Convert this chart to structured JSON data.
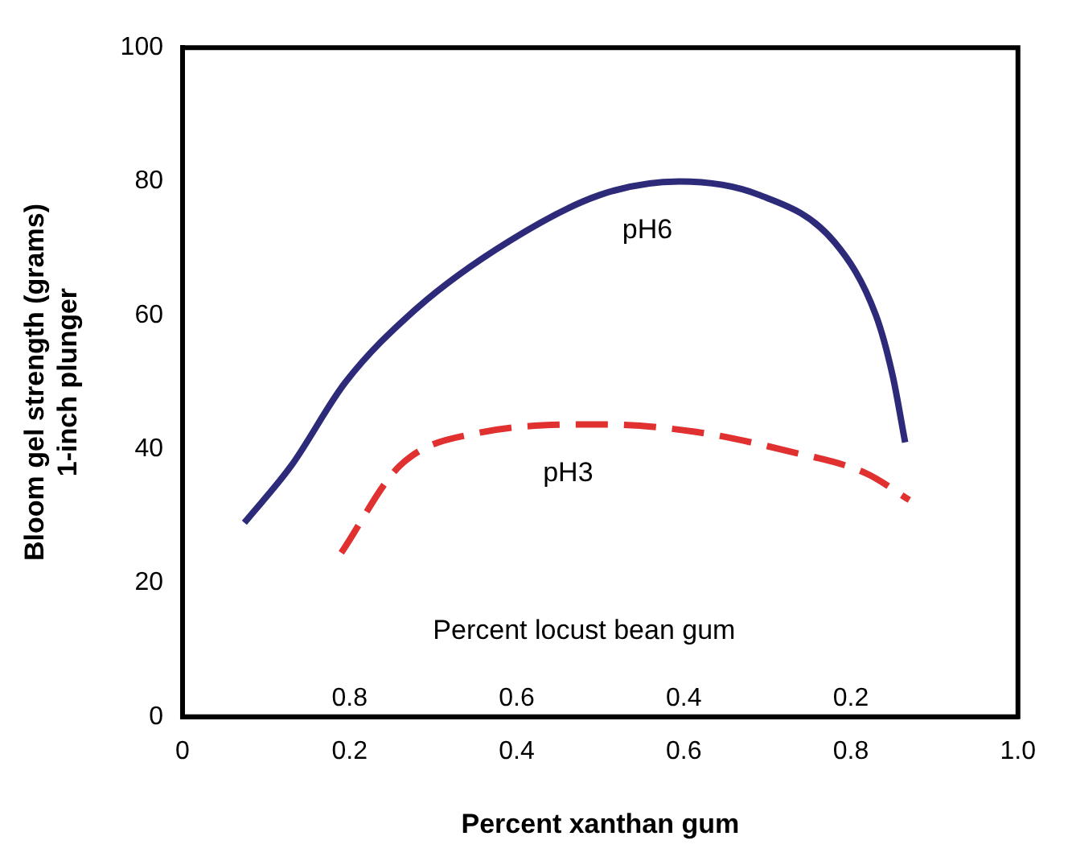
{
  "chart_data": {
    "type": "line",
    "xlabel": "Percent xanthan gum",
    "ylabel": "Bloom gel strength (grams)\n1-inch plunger",
    "x2label": "Percent locust bean gum",
    "xlim": [
      0,
      1
    ],
    "xticks": [
      0,
      0.2,
      0.4,
      0.6,
      0.8,
      {
        "value": 1,
        "label": "1.0"
      }
    ],
    "x2lim": [
      1,
      0
    ],
    "x2ticks": [
      0.8,
      0.6,
      0.4,
      0.2
    ],
    "ylim": [
      0,
      100
    ],
    "yticks": [
      0,
      20,
      40,
      60,
      80,
      100
    ],
    "grid": false,
    "legend": false,
    "marker": "none",
    "series": [
      {
        "name": "pH6",
        "color": "#2e2a7a",
        "line_style": "solid",
        "x": [
          0.074,
          0.13,
          0.195,
          0.28,
          0.39,
          0.5,
          0.595,
          0.69,
          0.78,
          0.83,
          0.85,
          0.865
        ],
        "values": [
          29,
          37.5,
          50,
          61,
          71,
          78,
          80,
          78,
          71,
          60,
          51,
          41
        ]
      },
      {
        "name": "pH3",
        "color": "#e03030",
        "line_style": "dashed",
        "x": [
          0.19,
          0.26,
          0.353,
          0.5,
          0.613,
          0.725,
          0.818,
          0.87
        ],
        "values": [
          24.5,
          37.5,
          42.4,
          43.7,
          42.6,
          39.7,
          36.4,
          32.4
        ]
      }
    ]
  }
}
